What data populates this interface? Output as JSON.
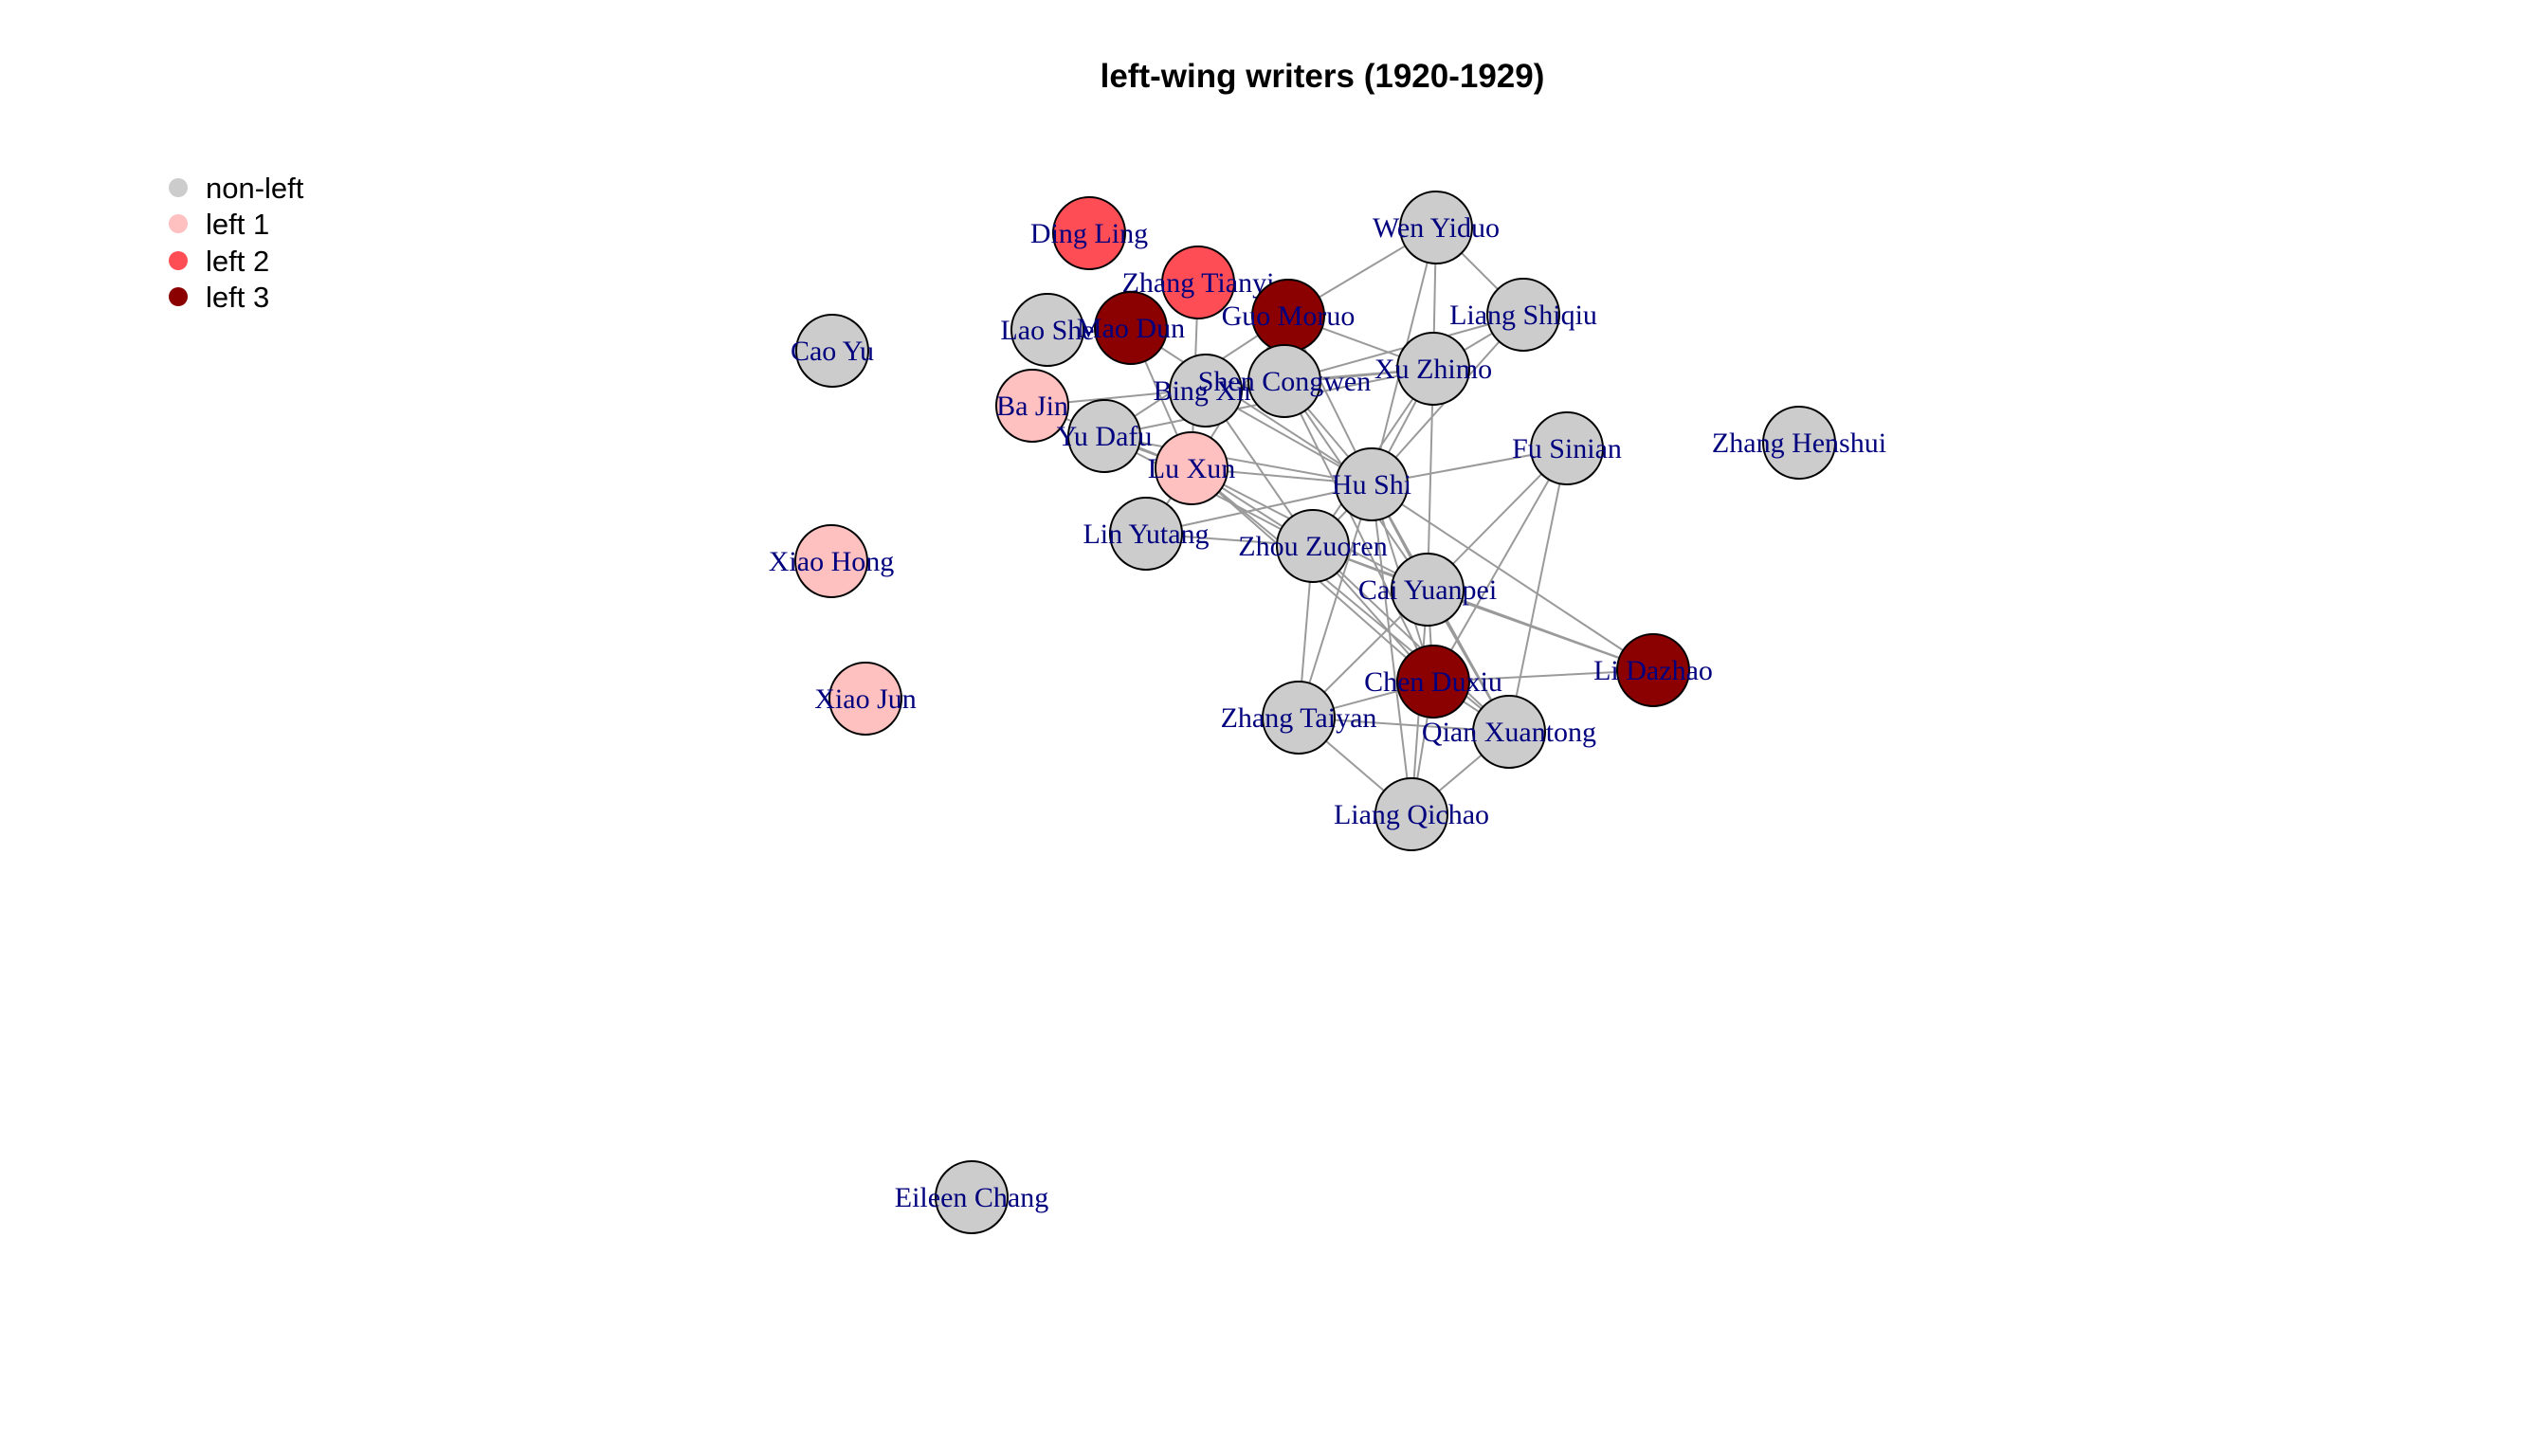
{
  "title": "left-wing writers (1920-1929)",
  "legend": [
    {
      "key": "non-left",
      "label": "non-left",
      "color": "#cccccc"
    },
    {
      "key": "left1",
      "label": "left 1",
      "color": "#ffc0c0"
    },
    {
      "key": "left2",
      "label": "left 2",
      "color": "#ff4d55"
    },
    {
      "key": "left3",
      "label": "left 3",
      "color": "#8b0000"
    }
  ],
  "nodes": [
    {
      "id": "cao_yu",
      "label": "Cao Yu",
      "group": "non-left"
    },
    {
      "id": "xiao_hong",
      "label": "Xiao Hong",
      "group": "left1"
    },
    {
      "id": "xiao_jun",
      "label": "Xiao Jun",
      "group": "left1"
    },
    {
      "id": "eileen_chang",
      "label": "Eileen Chang",
      "group": "non-left"
    },
    {
      "id": "ding_ling",
      "label": "Ding Ling",
      "group": "left2"
    },
    {
      "id": "zhang_tianyi",
      "label": "Zhang Tianyi",
      "group": "left2"
    },
    {
      "id": "lao_she",
      "label": "Lao She",
      "group": "non-left"
    },
    {
      "id": "mao_dun",
      "label": "Mao Dun",
      "group": "left3"
    },
    {
      "id": "guo_moruo",
      "label": "Guo Moruo",
      "group": "left3"
    },
    {
      "id": "wen_yiduo",
      "label": "Wen Yiduo",
      "group": "non-left"
    },
    {
      "id": "liang_shiqiu",
      "label": "Liang Shiqiu",
      "group": "non-left"
    },
    {
      "id": "ba_jin",
      "label": "Ba Jin",
      "group": "left1"
    },
    {
      "id": "bing_xin",
      "label": "Bing Xin",
      "group": "non-left"
    },
    {
      "id": "shen_congwen",
      "label": "Shen Congwen",
      "group": "non-left"
    },
    {
      "id": "xu_zhimo",
      "label": "Xu Zhimo",
      "group": "non-left"
    },
    {
      "id": "yu_dafu",
      "label": "Yu Dafu",
      "group": "non-left"
    },
    {
      "id": "lu_xun",
      "label": "Lu Xun",
      "group": "left1"
    },
    {
      "id": "hu_shi",
      "label": "Hu Shi",
      "group": "non-left"
    },
    {
      "id": "fu_sinian",
      "label": "Fu Sinian",
      "group": "non-left"
    },
    {
      "id": "zhang_henshui",
      "label": "Zhang Henshui",
      "group": "non-left"
    },
    {
      "id": "lin_yutang",
      "label": "Lin Yutang",
      "group": "non-left"
    },
    {
      "id": "zhou_zuoren",
      "label": "Zhou Zuoren",
      "group": "non-left"
    },
    {
      "id": "cai_yuanpei",
      "label": "Cai Yuanpei",
      "group": "non-left"
    },
    {
      "id": "li_dazhao",
      "label": "Li Dazhao",
      "group": "left3"
    },
    {
      "id": "chen_duxiu",
      "label": "Chen Duxiu",
      "group": "left3"
    },
    {
      "id": "qian_xuantong",
      "label": "Qian Xuantong",
      "group": "non-left"
    },
    {
      "id": "zhang_taiyan",
      "label": "Zhang Taiyan",
      "group": "non-left"
    },
    {
      "id": "liang_qichao",
      "label": "Liang Qichao",
      "group": "non-left"
    }
  ],
  "edges": [
    [
      "wen_yiduo",
      "liang_shiqiu"
    ],
    [
      "wen_yiduo",
      "xu_zhimo"
    ],
    [
      "wen_yiduo",
      "guo_moruo"
    ],
    [
      "wen_yiduo",
      "hu_shi"
    ],
    [
      "liang_shiqiu",
      "xu_zhimo"
    ],
    [
      "liang_shiqiu",
      "hu_shi"
    ],
    [
      "liang_shiqiu",
      "shen_congwen"
    ],
    [
      "guo_moruo",
      "xu_zhimo"
    ],
    [
      "guo_moruo",
      "hu_shi"
    ],
    [
      "guo_moruo",
      "yu_dafu"
    ],
    [
      "guo_moruo",
      "lu_xun"
    ],
    [
      "mao_dun",
      "lu_xun"
    ],
    [
      "mao_dun",
      "hu_shi"
    ],
    [
      "zhang_tianyi",
      "lu_xun"
    ],
    [
      "ba_jin",
      "shen_congwen"
    ],
    [
      "ba_jin",
      "lu_xun"
    ],
    [
      "bing_xin",
      "hu_shi"
    ],
    [
      "bing_xin",
      "zhou_zuoren"
    ],
    [
      "bing_xin",
      "xu_zhimo"
    ],
    [
      "shen_congwen",
      "xu_zhimo"
    ],
    [
      "shen_congwen",
      "hu_shi"
    ],
    [
      "shen_congwen",
      "cai_yuanpei"
    ],
    [
      "shen_congwen",
      "chen_duxiu"
    ],
    [
      "xu_zhimo",
      "hu_shi"
    ],
    [
      "xu_zhimo",
      "cai_yuanpei"
    ],
    [
      "xu_zhimo",
      "yu_dafu"
    ],
    [
      "xu_zhimo",
      "zhou_zuoren"
    ],
    [
      "yu_dafu",
      "lu_xun"
    ],
    [
      "yu_dafu",
      "hu_shi"
    ],
    [
      "yu_dafu",
      "zhou_zuoren"
    ],
    [
      "lu_xun",
      "hu_shi"
    ],
    [
      "lu_xun",
      "zhou_zuoren"
    ],
    [
      "lu_xun",
      "cai_yuanpei"
    ],
    [
      "lu_xun",
      "chen_duxiu"
    ],
    [
      "lu_xun",
      "qian_xuantong"
    ],
    [
      "lu_xun",
      "lin_yutang"
    ],
    [
      "hu_shi",
      "fu_sinian"
    ],
    [
      "hu_shi",
      "cai_yuanpei"
    ],
    [
      "hu_shi",
      "chen_duxiu"
    ],
    [
      "hu_shi",
      "li_dazhao"
    ],
    [
      "hu_shi",
      "qian_xuantong"
    ],
    [
      "hu_shi",
      "zhou_zuoren"
    ],
    [
      "hu_shi",
      "liang_qichao"
    ],
    [
      "hu_shi",
      "zhang_taiyan"
    ],
    [
      "fu_sinian",
      "cai_yuanpei"
    ],
    [
      "fu_sinian",
      "chen_duxiu"
    ],
    [
      "fu_sinian",
      "qian_xuantong"
    ],
    [
      "lin_yutang",
      "zhou_zuoren"
    ],
    [
      "lin_yutang",
      "hu_shi"
    ],
    [
      "zhou_zuoren",
      "cai_yuanpei"
    ],
    [
      "zhou_zuoren",
      "chen_duxiu"
    ],
    [
      "zhou_zuoren",
      "qian_xuantong"
    ],
    [
      "zhou_zuoren",
      "zhang_taiyan"
    ],
    [
      "zhou_zuoren",
      "li_dazhao"
    ],
    [
      "cai_yuanpei",
      "chen_duxiu"
    ],
    [
      "cai_yuanpei",
      "li_dazhao"
    ],
    [
      "cai_yuanpei",
      "qian_xuantong"
    ],
    [
      "cai_yuanpei",
      "liang_qichao"
    ],
    [
      "cai_yuanpei",
      "zhang_taiyan"
    ],
    [
      "chen_duxiu",
      "li_dazhao"
    ],
    [
      "chen_duxiu",
      "qian_xuantong"
    ],
    [
      "chen_duxiu",
      "liang_qichao"
    ],
    [
      "chen_duxiu",
      "zhang_taiyan"
    ],
    [
      "zhang_taiyan",
      "liang_qichao"
    ],
    [
      "zhang_taiyan",
      "qian_xuantong"
    ],
    [
      "liang_qichao",
      "qian_xuantong"
    ]
  ]
}
